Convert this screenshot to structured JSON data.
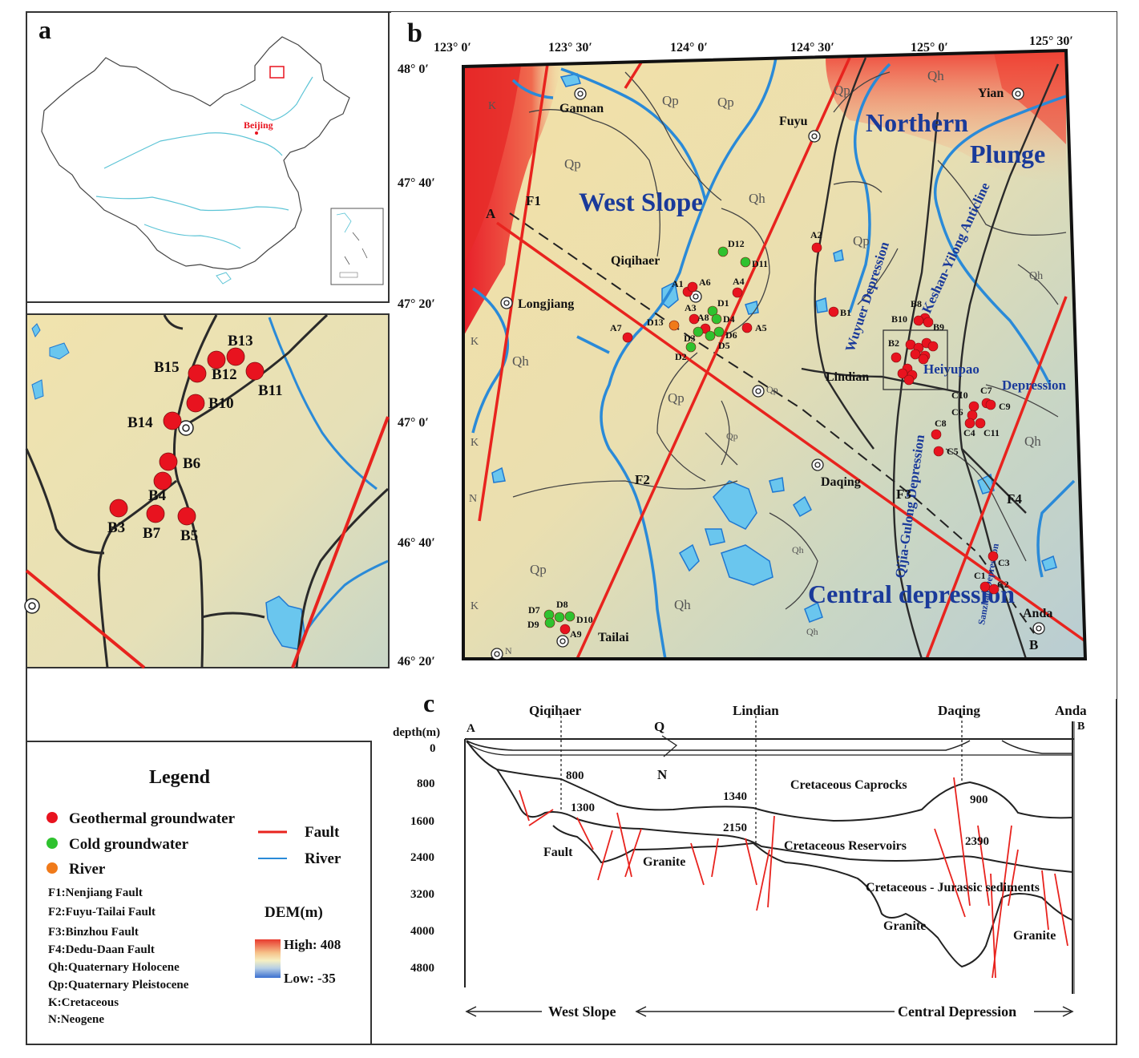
{
  "panels": {
    "a": "a",
    "b": "b",
    "c": "c"
  },
  "overview_map": {
    "capital_label": "Beijing"
  },
  "map_b": {
    "lon_ticks": [
      "123° 0′",
      "123° 30′",
      "124° 0′",
      "124° 30′",
      "125° 0′",
      "125° 30′"
    ],
    "lat_ticks": [
      "48° 0′",
      "47° 40′",
      "47° 20′",
      "47° 0′",
      "46° 40′",
      "46° 20′"
    ],
    "cities": {
      "gannan": "Gannan",
      "fuyu": "Fuyu",
      "yian": "Yian",
      "qiqihaer": "Qiqihaer",
      "longjiang": "Longjiang",
      "lindian": "Lindian",
      "daqing": "Daqing",
      "tailai": "Tailai",
      "anda": "Anda"
    },
    "regions": {
      "west_slope": "West Slope",
      "northern": "Northern",
      "plunge": "Plunge",
      "wuyuer": "Wuyuer Depression",
      "keshan": "Keshan-Yilong Anticline",
      "heiyupao": "Heiyupao",
      "heiyupao2": "Depression",
      "qijia": "Qijia-Gulong Depression",
      "central": "Central depression",
      "sanzhao": "Sanzhao Depression"
    },
    "faults": {
      "f1": "F1",
      "f2": "F2",
      "f3": "F3",
      "f4": "F4"
    },
    "section_ends": {
      "a": "A",
      "b": "B"
    },
    "geo_units": {
      "qh": "Qh",
      "qp": "Qp",
      "k": "K",
      "n": "N"
    },
    "sample_colors": {
      "geothermal": "#e8131f",
      "cold": "#2fc22f",
      "river": "#f07a1a"
    }
  },
  "cross_section": {
    "depth_title": "depth(m)",
    "depth_ticks": [
      "0",
      "800",
      "1600",
      "2400",
      "3200",
      "4000",
      "4800"
    ],
    "ends": {
      "a": "A",
      "b": "B"
    },
    "cities": [
      "Qiqihaer",
      "Lindian",
      "Daqing",
      "Anda"
    ],
    "q_label": "Q",
    "n_label": "N",
    "depth_labels": {
      "d800": "800",
      "d1300": "1300",
      "d1340": "1340",
      "d2150": "2150",
      "d900": "900",
      "d2390": "2390"
    },
    "units": {
      "caprocks": "Cretaceous Caprocks",
      "reservoirs": "Cretaceous Reservoirs",
      "sediments": "Cretaceous - Jurassic sediments",
      "granite": "Granite",
      "fault": "Fault"
    },
    "zones": {
      "west": "West Slope",
      "central": "Central Depression"
    }
  },
  "legend": {
    "title": "Legend",
    "geothermal": "Geothermal groundwater",
    "cold": "Cold groundwater",
    "river_sample": "River",
    "fault": "Fault",
    "river_line": "River",
    "f1": "F1:Nenjiang Fault",
    "f2": "F2:Fuyu-Tailai Fault",
    "f3": "F3:Binzhou Fault",
    "f4": "F4:Dedu-Daan Fault",
    "qh": "Qh:Quaternary Holocene",
    "qp": "Qp:Quaternary Pleistocene",
    "k": "K:Cretaceous",
    "n": "N:Neogene",
    "dem_title": "DEM(m)",
    "dem_high": "High: 408",
    "dem_low": "Low: -35"
  }
}
